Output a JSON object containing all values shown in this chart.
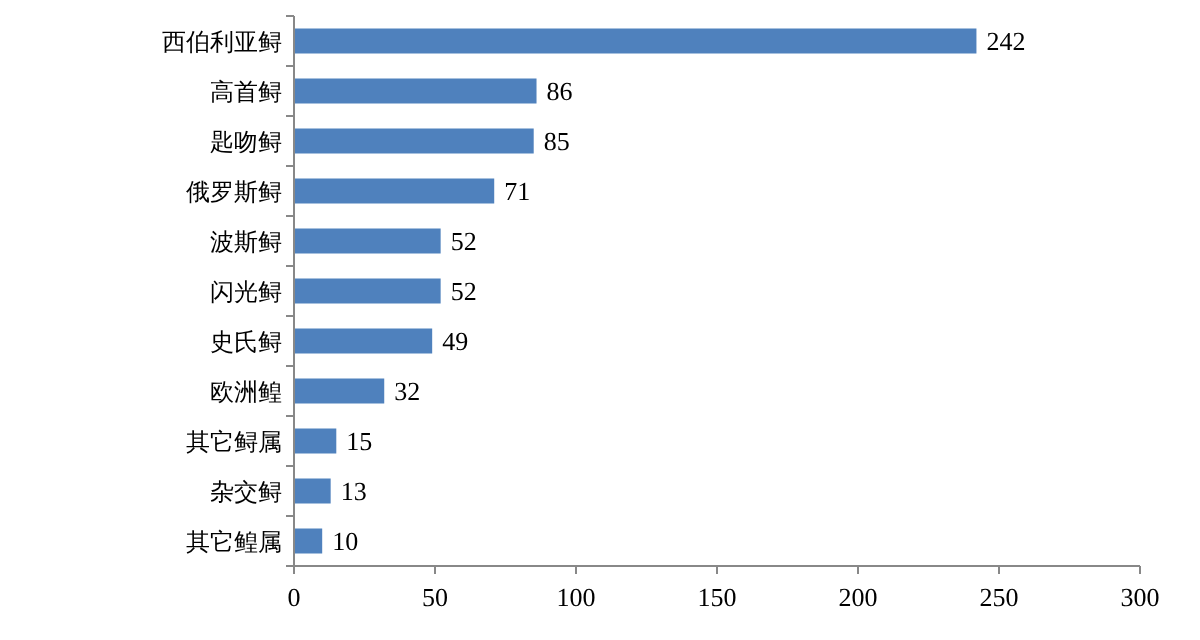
{
  "chart_data": {
    "type": "bar",
    "orientation": "horizontal",
    "categories": [
      "西伯利亚鲟",
      "高首鲟",
      "匙吻鲟",
      "俄罗斯鲟",
      "波斯鲟",
      "闪光鲟",
      "史氏鲟",
      "欧洲鳇",
      "其它鲟属",
      "杂交鲟",
      "其它鳇属"
    ],
    "values": [
      242,
      86,
      85,
      71,
      52,
      52,
      49,
      32,
      15,
      13,
      10
    ],
    "color": "#4f81bd",
    "xlim": [
      0,
      300
    ],
    "xticks": [
      0,
      50,
      100,
      150,
      200,
      250,
      300
    ],
    "data_labels": true
  }
}
